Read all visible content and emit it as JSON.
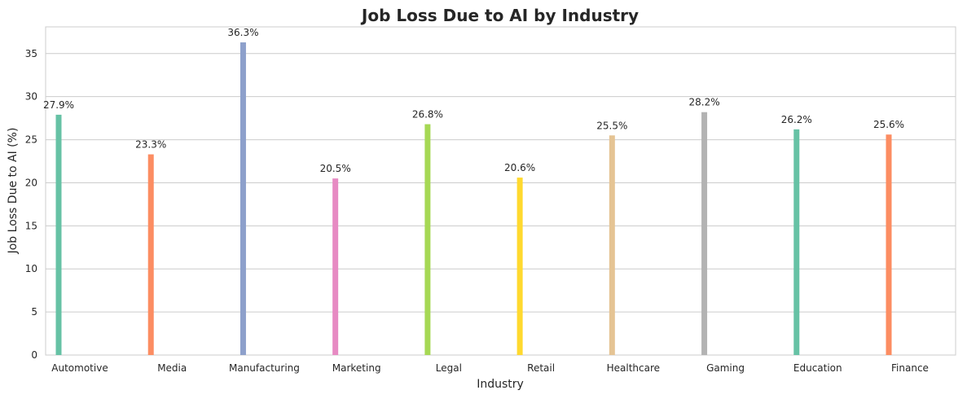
{
  "chart_data": {
    "type": "bar",
    "title": "Job Loss Due to AI by Industry",
    "xlabel": "Industry",
    "ylabel": "Job Loss Due to AI (%)",
    "categories": [
      "Automotive",
      "Media",
      "Manufacturing",
      "Marketing",
      "Legal",
      "Retail",
      "Healthcare",
      "Gaming",
      "Education",
      "Finance"
    ],
    "values": [
      27.9,
      23.3,
      36.3,
      20.5,
      26.8,
      20.6,
      25.5,
      28.2,
      26.2,
      25.6
    ],
    "data_labels": [
      "27.9%",
      "23.3%",
      "36.3%",
      "20.5%",
      "26.8%",
      "20.6%",
      "25.5%",
      "28.2%",
      "26.2%",
      "25.6%"
    ],
    "colors": [
      "#66c2a5",
      "#fc8d62",
      "#8da0cb",
      "#e78ac3",
      "#a6d854",
      "#ffd92f",
      "#e5c494",
      "#b3b3b3",
      "#66c2a5",
      "#fc8d62"
    ],
    "ylim": [
      0,
      38.1
    ],
    "yticks": [
      0,
      5,
      10,
      15,
      20,
      25,
      30,
      35
    ],
    "grid": true,
    "background": "#ffffff"
  }
}
